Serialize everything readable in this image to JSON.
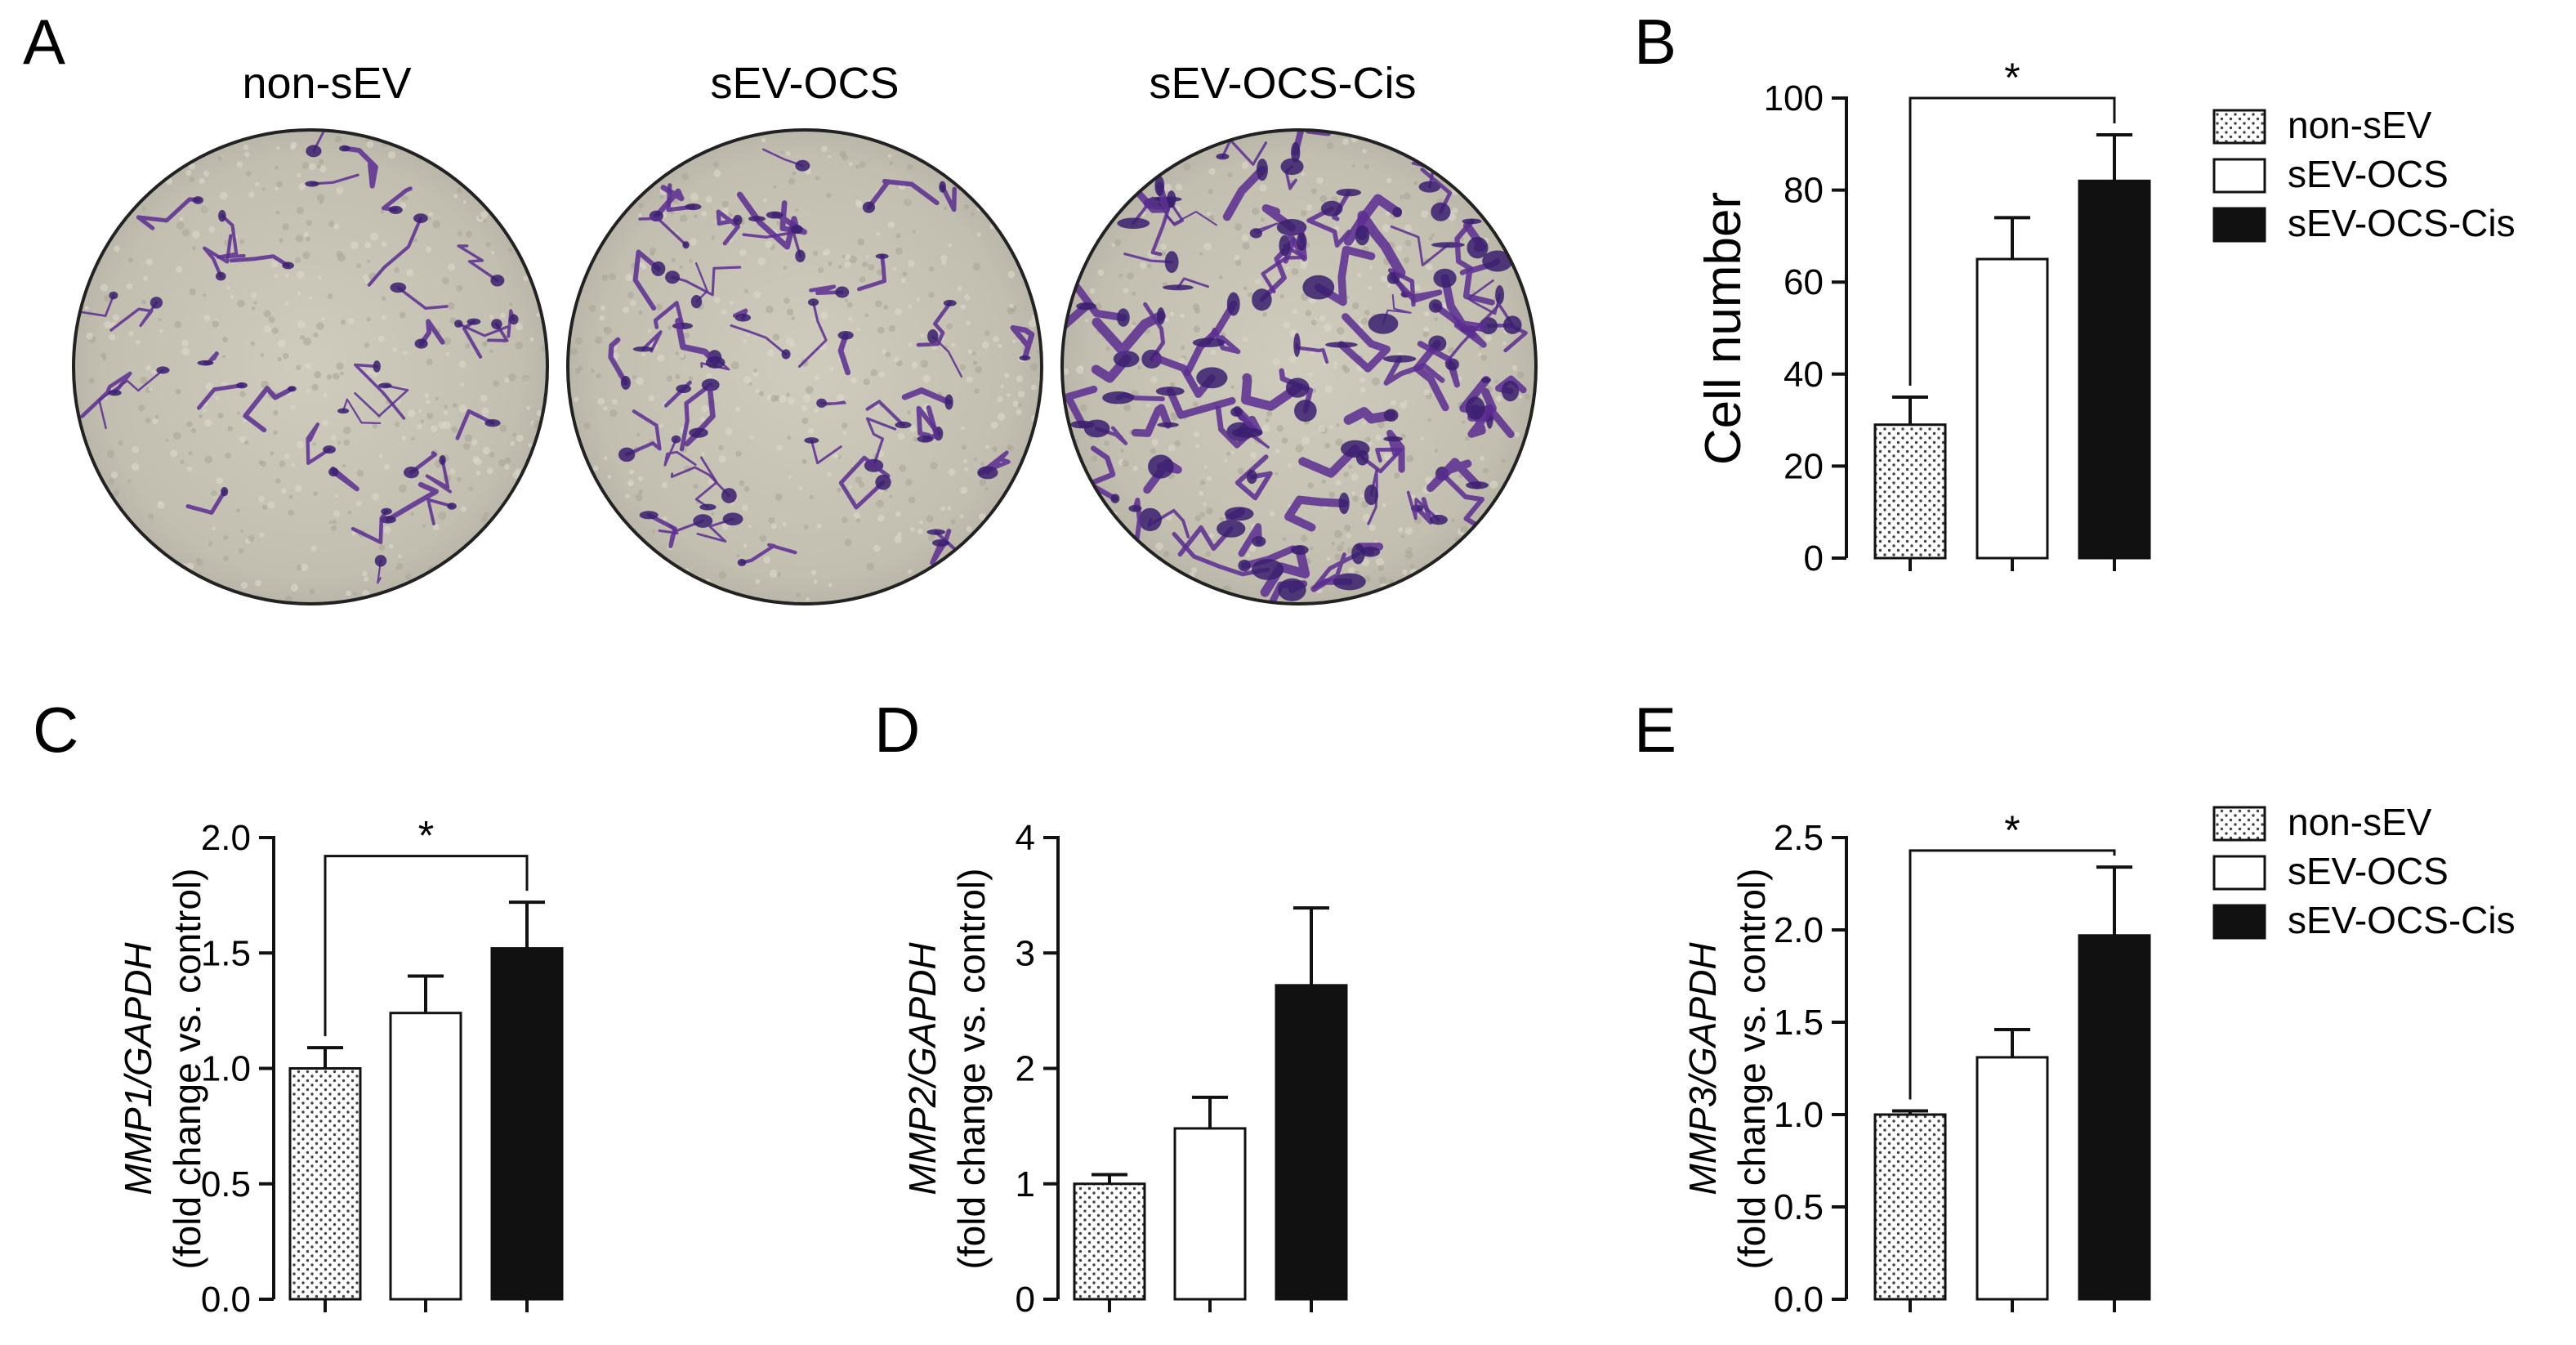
{
  "panel_a": {
    "letter": "A",
    "images": [
      {
        "label": "non-sEV",
        "density": 0.15
      },
      {
        "label": "sEV-OCS",
        "density": 0.35
      },
      {
        "label": "sEV-OCS-Cis",
        "density": 0.9
      }
    ],
    "colors": {
      "background": "#c9c5b7",
      "stain": "#5b2d91"
    }
  },
  "legend": {
    "entries": [
      "non-sEV",
      "sEV-OCS",
      "sEV-OCS-Cis"
    ],
    "fills": [
      "dotted",
      "#ffffff",
      "#111111"
    ]
  },
  "chart_data": [
    {
      "panel": "B",
      "type": "bar",
      "categories": [
        "non-sEV",
        "sEV-OCS",
        "sEV-OCS-Cis"
      ],
      "values": [
        29,
        65,
        82
      ],
      "errors": [
        6,
        9,
        10
      ],
      "ylabel_italic": "",
      "ylabel": "Cell number",
      "ylim": [
        0,
        100
      ],
      "yticks": [
        "0",
        "20",
        "40",
        "60",
        "80",
        "100"
      ],
      "significance": {
        "from": 0,
        "to": 2,
        "label": "*",
        "level": 100
      },
      "legend": "right"
    },
    {
      "panel": "C",
      "type": "bar",
      "categories": [
        "non-sEV",
        "sEV-OCS",
        "sEV-OCS-Cis"
      ],
      "values": [
        1.0,
        1.24,
        1.52
      ],
      "errors": [
        0.09,
        0.16,
        0.2
      ],
      "ylabel_italic": "MMP1/GAPDH",
      "ylabel": "(fold change vs. control)",
      "ylim": [
        0,
        2
      ],
      "yticks": [
        "0.0",
        "0.5",
        "1.0",
        "1.5",
        "2.0"
      ],
      "significance": {
        "from": 0,
        "to": 2,
        "label": "*",
        "level": 1.92
      }
    },
    {
      "panel": "D",
      "type": "bar",
      "categories": [
        "non-sEV",
        "sEV-OCS",
        "sEV-OCS-Cis"
      ],
      "values": [
        1.0,
        1.48,
        2.72
      ],
      "errors": [
        0.08,
        0.27,
        0.67
      ],
      "ylabel_italic": "MMP2/GAPDH",
      "ylabel": "(fold change vs. control)",
      "ylim": [
        0,
        4
      ],
      "yticks": [
        "0",
        "1",
        "2",
        "3",
        "4"
      ]
    },
    {
      "panel": "E",
      "type": "bar",
      "categories": [
        "non-sEV",
        "sEV-OCS",
        "sEV-OCS-Cis"
      ],
      "values": [
        1.0,
        1.31,
        1.97
      ],
      "errors": [
        0.02,
        0.15,
        0.37
      ],
      "ylabel_italic": "MMP3/GAPDH",
      "ylabel": "(fold change vs. control)",
      "ylim": [
        0,
        2.5
      ],
      "yticks": [
        "0.0",
        "0.5",
        "1.0",
        "1.5",
        "2.0",
        "2.5"
      ],
      "significance": {
        "from": 0,
        "to": 2,
        "label": "*",
        "level": 2.43
      },
      "legend": "right"
    }
  ]
}
